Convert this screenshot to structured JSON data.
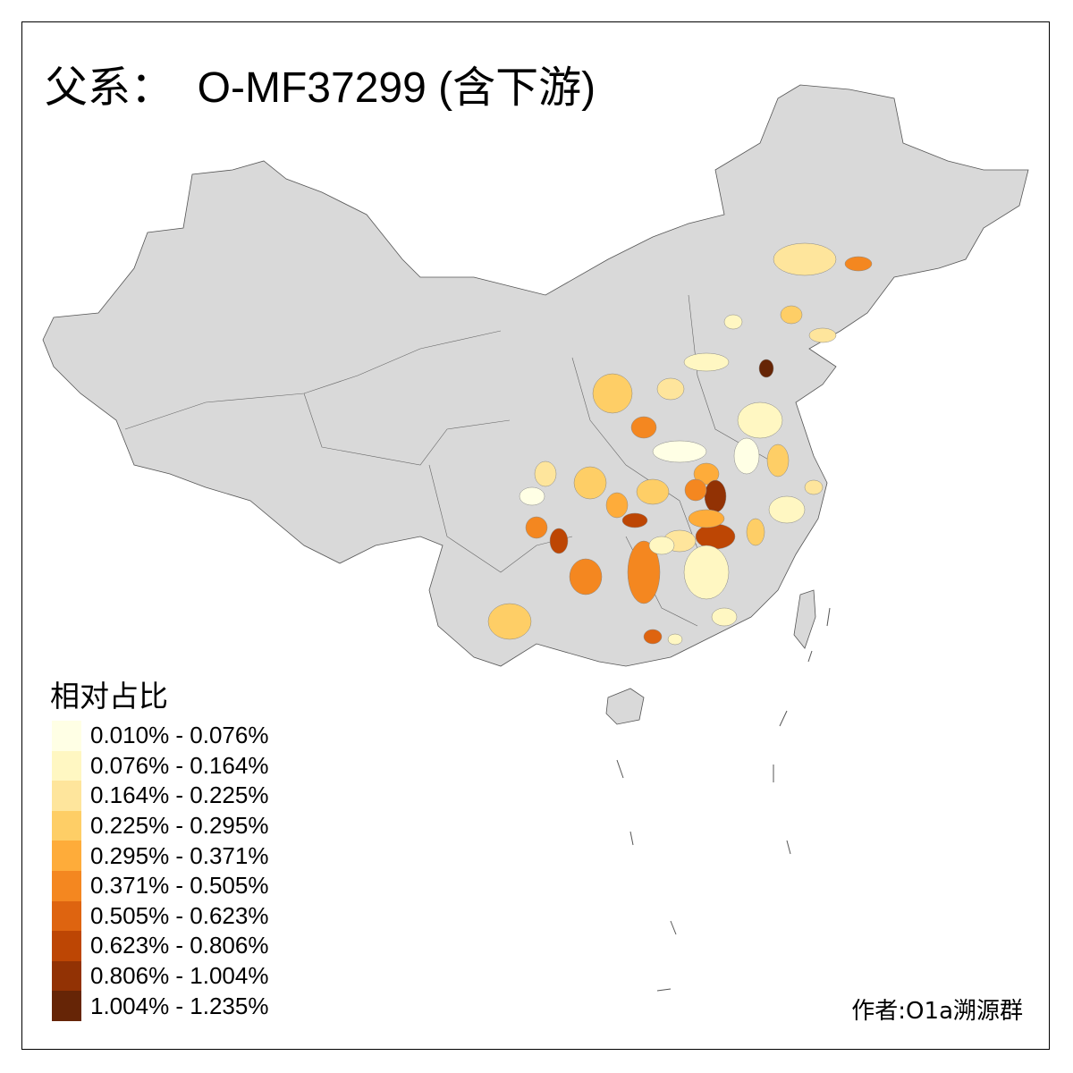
{
  "title": "父系：  O-MF37299 (含下游)",
  "legend": {
    "title": "相对占比",
    "classes": [
      {
        "label": "0.010% - 0.076%",
        "color": "#FFFFE5"
      },
      {
        "label": "0.076% - 0.164%",
        "color": "#FFF7C2"
      },
      {
        "label": "0.164% - 0.225%",
        "color": "#FEE59C"
      },
      {
        "label": "0.225% - 0.295%",
        "color": "#FECE66"
      },
      {
        "label": "0.295% - 0.371%",
        "color": "#FEAC3A"
      },
      {
        "label": "0.371% - 0.505%",
        "color": "#F48720"
      },
      {
        "label": "0.505% - 0.623%",
        "color": "#DE6410"
      },
      {
        "label": "0.623% - 0.806%",
        "color": "#BD4604"
      },
      {
        "label": "0.806% - 1.004%",
        "color": "#923204"
      },
      {
        "label": "1.004% - 1.235%",
        "color": "#662506"
      }
    ]
  },
  "no_data_color": "#D9D9D9",
  "credit": "作者:O1a溯源群"
}
